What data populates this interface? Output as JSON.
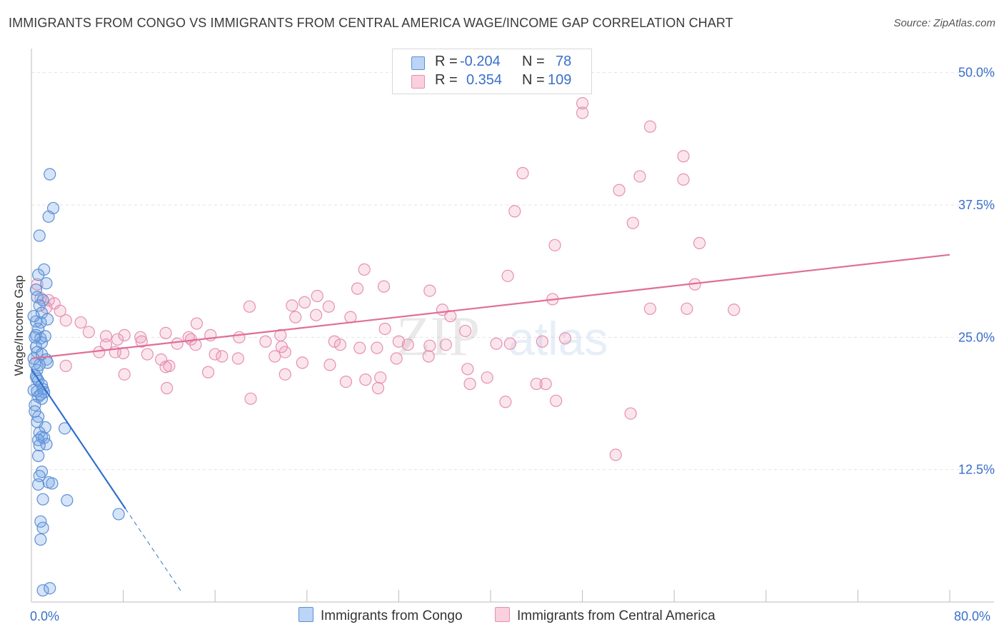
{
  "title": "IMMIGRANTS FROM CONGO VS IMMIGRANTS FROM CENTRAL AMERICA WAGE/INCOME GAP CORRELATION CHART",
  "source": "Source: ZipAtlas.com",
  "watermark": {
    "zip": "ZIP",
    "atlas": "atlas"
  },
  "legend": {
    "rows": [
      {
        "r_label": "R =",
        "r_value": "-0.204",
        "n_label": "N =",
        "n_value": "78",
        "color": "#a9c8f2",
        "edge": "#5b8fd6"
      },
      {
        "r_label": "R =",
        "r_value": "0.354",
        "n_label": "N =",
        "n_value": "109",
        "color": "#f6bfd1",
        "edge": "#e37fa2"
      }
    ]
  },
  "bottom_legend": {
    "congo": "Immigrants from Congo",
    "central_america": "Immigrants from Central America"
  },
  "x_axis": {
    "min_label": "0.0%",
    "max_label": "80.0%"
  },
  "colors": {
    "blue_fill": "rgba(120,165,230,0.30)",
    "blue_edge": "#5b8fd6",
    "blue_line": "#2f6fce",
    "pink_fill": "rgba(240,150,185,0.25)",
    "pink_edge": "#e590b0",
    "pink_line": "#e06e97",
    "tick_text": "#3a6fc8"
  },
  "chart_data": {
    "type": "scatter",
    "title": "IMMIGRANTS FROM CONGO VS IMMIGRANTS FROM CENTRAL AMERICA WAGE/INCOME GAP CORRELATION CHART",
    "xlabel": "",
    "ylabel": "Wage/Income Gap",
    "xlim": [
      0,
      80
    ],
    "ylim": [
      0,
      52
    ],
    "y_ticks": [
      12.5,
      25.0,
      37.5,
      50.0
    ],
    "y_tick_labels": [
      "12.5%",
      "25.0%",
      "37.5%",
      "50.0%"
    ],
    "series": [
      {
        "name": "Immigrants from Congo",
        "r": -0.204,
        "n": 78,
        "trend": {
          "x1": 0,
          "y1": 22.0,
          "x2": 8.2,
          "y2": 8.8,
          "dash_to_x": 13.0
        },
        "points": [
          [
            1.6,
            40.4
          ],
          [
            1.9,
            37.2
          ],
          [
            1.5,
            36.4
          ],
          [
            0.7,
            34.6
          ],
          [
            1.1,
            31.4
          ],
          [
            0.6,
            30.9
          ],
          [
            1.3,
            30.1
          ],
          [
            0.4,
            29.5
          ],
          [
            0.5,
            28.8
          ],
          [
            1.0,
            28.5
          ],
          [
            0.7,
            28.0
          ],
          [
            0.9,
            27.3
          ],
          [
            1.4,
            26.7
          ],
          [
            0.8,
            26.4
          ],
          [
            0.6,
            25.8
          ],
          [
            0.4,
            25.2
          ],
          [
            0.8,
            24.9
          ],
          [
            0.9,
            24.5
          ],
          [
            0.4,
            24.1
          ],
          [
            0.5,
            23.6
          ],
          [
            0.9,
            23.4
          ],
          [
            1.3,
            22.9
          ],
          [
            1.4,
            22.6
          ],
          [
            0.7,
            22.4
          ],
          [
            0.5,
            21.9
          ],
          [
            0.5,
            21.1
          ],
          [
            0.6,
            20.9
          ],
          [
            0.9,
            20.5
          ],
          [
            1.0,
            20.1
          ],
          [
            1.1,
            19.8
          ],
          [
            0.6,
            19.4
          ],
          [
            0.9,
            19.2
          ],
          [
            0.3,
            18.6
          ],
          [
            0.6,
            17.5
          ],
          [
            0.5,
            17.0
          ],
          [
            1.2,
            16.5
          ],
          [
            2.9,
            16.4
          ],
          [
            0.7,
            16.0
          ],
          [
            0.9,
            15.6
          ],
          [
            1.1,
            15.5
          ],
          [
            0.6,
            15.3
          ],
          [
            1.3,
            14.9
          ],
          [
            0.7,
            14.8
          ],
          [
            0.6,
            13.8
          ],
          [
            0.9,
            12.3
          ],
          [
            0.7,
            11.9
          ],
          [
            1.5,
            11.3
          ],
          [
            1.8,
            11.2
          ],
          [
            0.6,
            11.1
          ],
          [
            1.0,
            9.7
          ],
          [
            3.1,
            9.6
          ],
          [
            7.6,
            8.3
          ],
          [
            0.8,
            7.6
          ],
          [
            1.0,
            7.0
          ],
          [
            0.8,
            5.9
          ],
          [
            1.0,
            1.1
          ],
          [
            1.6,
            1.3
          ],
          [
            0.3,
            25.0
          ],
          [
            0.2,
            23.0
          ],
          [
            0.2,
            20.0
          ],
          [
            0.3,
            18.0
          ],
          [
            0.4,
            26.5
          ],
          [
            0.3,
            22.5
          ],
          [
            0.5,
            19.9
          ],
          [
            1.2,
            25.1
          ],
          [
            0.2,
            27.0
          ],
          [
            0.8,
            19.6
          ],
          [
            0.4,
            21.3
          ]
        ]
      },
      {
        "name": "Immigrants from Central America",
        "r": 0.354,
        "n": 109,
        "trend": {
          "x1": 0,
          "y1": 23.0,
          "x2": 80,
          "y2": 32.8
        },
        "points": [
          [
            48.0,
            46.2
          ],
          [
            48.0,
            47.1
          ],
          [
            53.9,
            44.9
          ],
          [
            56.8,
            42.1
          ],
          [
            53.0,
            40.2
          ],
          [
            56.8,
            39.9
          ],
          [
            42.8,
            40.5
          ],
          [
            51.2,
            38.9
          ],
          [
            52.4,
            35.8
          ],
          [
            42.1,
            36.9
          ],
          [
            58.2,
            33.9
          ],
          [
            45.6,
            33.7
          ],
          [
            29.0,
            31.4
          ],
          [
            41.5,
            30.8
          ],
          [
            57.8,
            30.0
          ],
          [
            28.4,
            29.6
          ],
          [
            30.7,
            29.8
          ],
          [
            34.7,
            29.4
          ],
          [
            24.9,
            28.9
          ],
          [
            45.4,
            28.6
          ],
          [
            23.8,
            28.3
          ],
          [
            22.7,
            28.0
          ],
          [
            19.0,
            27.9
          ],
          [
            25.9,
            27.9
          ],
          [
            53.9,
            27.7
          ],
          [
            57.1,
            27.7
          ],
          [
            61.2,
            27.6
          ],
          [
            35.8,
            27.6
          ],
          [
            24.8,
            27.1
          ],
          [
            36.5,
            27.0
          ],
          [
            27.8,
            26.9
          ],
          [
            23.0,
            26.9
          ],
          [
            1.5,
            28.5
          ],
          [
            2.0,
            28.2
          ],
          [
            0.5,
            30.0
          ],
          [
            0.8,
            28.7
          ],
          [
            1.3,
            27.8
          ],
          [
            2.5,
            27.5
          ],
          [
            3.0,
            26.6
          ],
          [
            4.3,
            26.4
          ],
          [
            14.4,
            26.3
          ],
          [
            30.8,
            25.8
          ],
          [
            37.8,
            25.6
          ],
          [
            5.0,
            25.5
          ],
          [
            11.7,
            25.4
          ],
          [
            15.6,
            25.2
          ],
          [
            21.7,
            25.2
          ],
          [
            8.1,
            25.2
          ],
          [
            6.5,
            25.1
          ],
          [
            18.1,
            25.0
          ],
          [
            13.7,
            25.0
          ],
          [
            46.5,
            24.9
          ],
          [
            7.5,
            24.8
          ],
          [
            9.6,
            24.6
          ],
          [
            13.9,
            24.8
          ],
          [
            20.4,
            24.6
          ],
          [
            12.7,
            24.4
          ],
          [
            14.3,
            24.3
          ],
          [
            26.4,
            24.6
          ],
          [
            32.0,
            24.6
          ],
          [
            40.5,
            24.4
          ],
          [
            41.7,
            24.4
          ],
          [
            44.5,
            24.6
          ],
          [
            26.9,
            24.3
          ],
          [
            32.8,
            24.3
          ],
          [
            34.7,
            24.2
          ],
          [
            36.1,
            24.3
          ],
          [
            21.8,
            24.1
          ],
          [
            28.6,
            24.0
          ],
          [
            30.1,
            24.0
          ],
          [
            22.1,
            23.6
          ],
          [
            7.3,
            23.6
          ],
          [
            8.0,
            23.5
          ],
          [
            16.0,
            23.4
          ],
          [
            16.6,
            23.2
          ],
          [
            21.2,
            23.2
          ],
          [
            18.0,
            23.0
          ],
          [
            31.8,
            23.0
          ],
          [
            34.6,
            23.2
          ],
          [
            11.3,
            22.9
          ],
          [
            23.6,
            22.6
          ],
          [
            26.0,
            22.4
          ],
          [
            12.0,
            22.3
          ],
          [
            11.7,
            22.2
          ],
          [
            15.4,
            21.7
          ],
          [
            22.1,
            21.5
          ],
          [
            38.0,
            22.0
          ],
          [
            39.7,
            21.2
          ],
          [
            30.4,
            21.2
          ],
          [
            29.1,
            21.0
          ],
          [
            27.4,
            20.8
          ],
          [
            38.2,
            20.6
          ],
          [
            44.0,
            20.6
          ],
          [
            44.8,
            20.6
          ],
          [
            30.2,
            20.2
          ],
          [
            11.8,
            20.2
          ],
          [
            19.1,
            19.2
          ],
          [
            45.7,
            19.0
          ],
          [
            41.3,
            18.9
          ],
          [
            52.2,
            17.8
          ],
          [
            50.9,
            13.9
          ],
          [
            8.1,
            21.5
          ],
          [
            5.9,
            23.6
          ],
          [
            6.5,
            24.3
          ],
          [
            10.1,
            23.4
          ],
          [
            3.0,
            22.3
          ],
          [
            9.5,
            25.0
          ]
        ]
      }
    ]
  }
}
